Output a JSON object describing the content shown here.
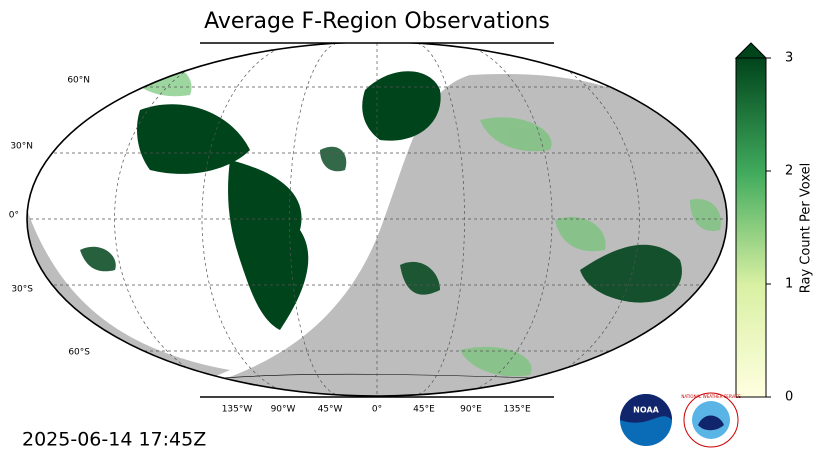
{
  "title": "Average F-Region Observations",
  "timestamp": "2025-06-14 17:45Z",
  "lat_labels": [
    "60°N",
    "30°N",
    "0°",
    "30°S",
    "60°S"
  ],
  "lon_labels": [
    "135°W",
    "90°W",
    "45°W",
    "0°",
    "45°E",
    "90°E",
    "135°E"
  ],
  "colorbar": {
    "label": "Ray Count Per Voxel",
    "lim": [
      0,
      3
    ],
    "ticks": [
      0,
      1,
      2,
      3
    ],
    "color_low": "#ffffe0",
    "color_high": "#00441b",
    "extend": "max"
  },
  "logos": {
    "noaa": "NOAA",
    "nws": "NATIONAL WEATHER SERVICE"
  }
}
